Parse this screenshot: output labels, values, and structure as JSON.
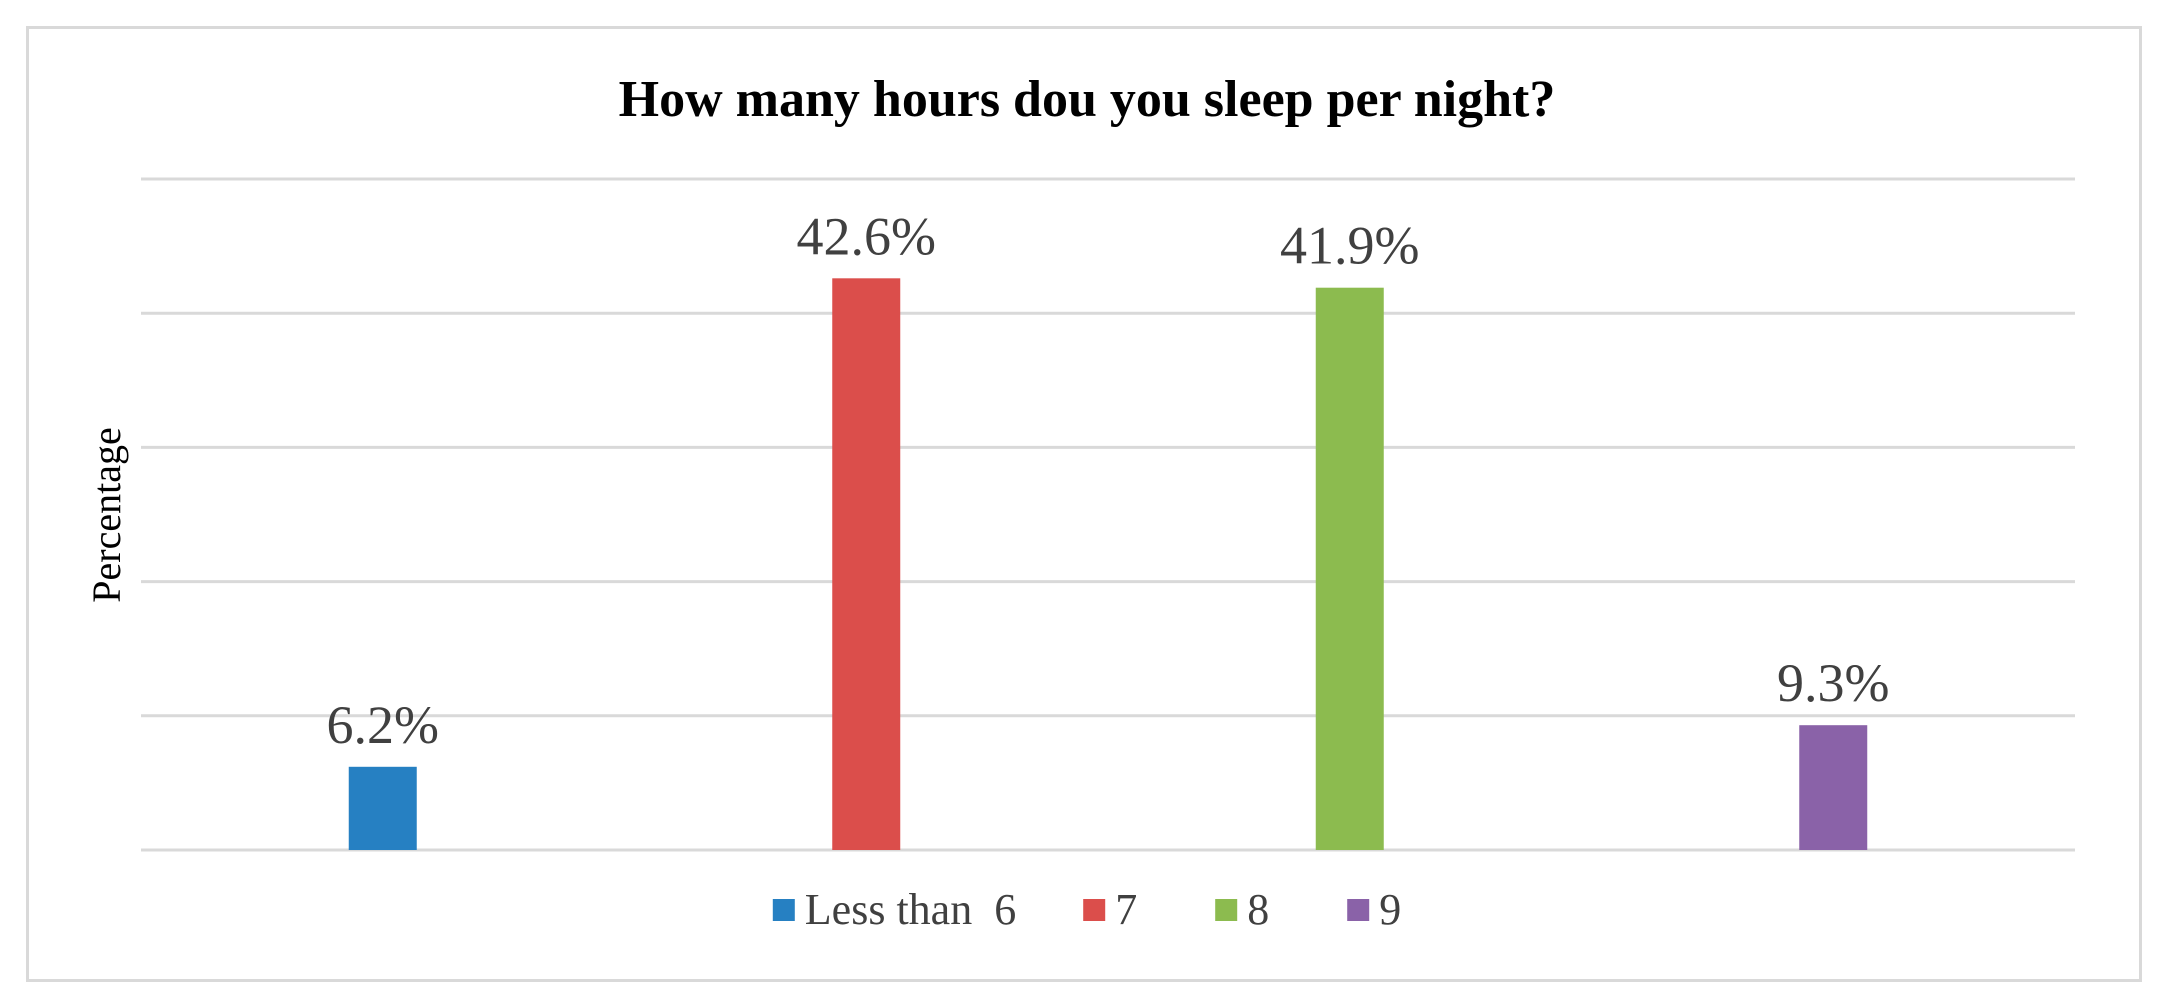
{
  "chart_data": {
    "type": "bar",
    "title": "How many hours dou you sleep per night?",
    "ylabel": "Percentage",
    "xlabel": "",
    "categories": [
      "Less than  6",
      "7",
      "8",
      "9"
    ],
    "values": [
      6.2,
      42.6,
      41.9,
      9.3
    ],
    "data_labels": [
      "6.2%",
      "42.6%",
      "41.9%",
      "9.3%"
    ],
    "colors": [
      "#2680c2",
      "#db4e4b",
      "#8cbb4f",
      "#8a62a8"
    ],
    "ylim": [
      0,
      50
    ],
    "gridlines": true,
    "gridline_count": 5,
    "legend_position": "bottom"
  }
}
